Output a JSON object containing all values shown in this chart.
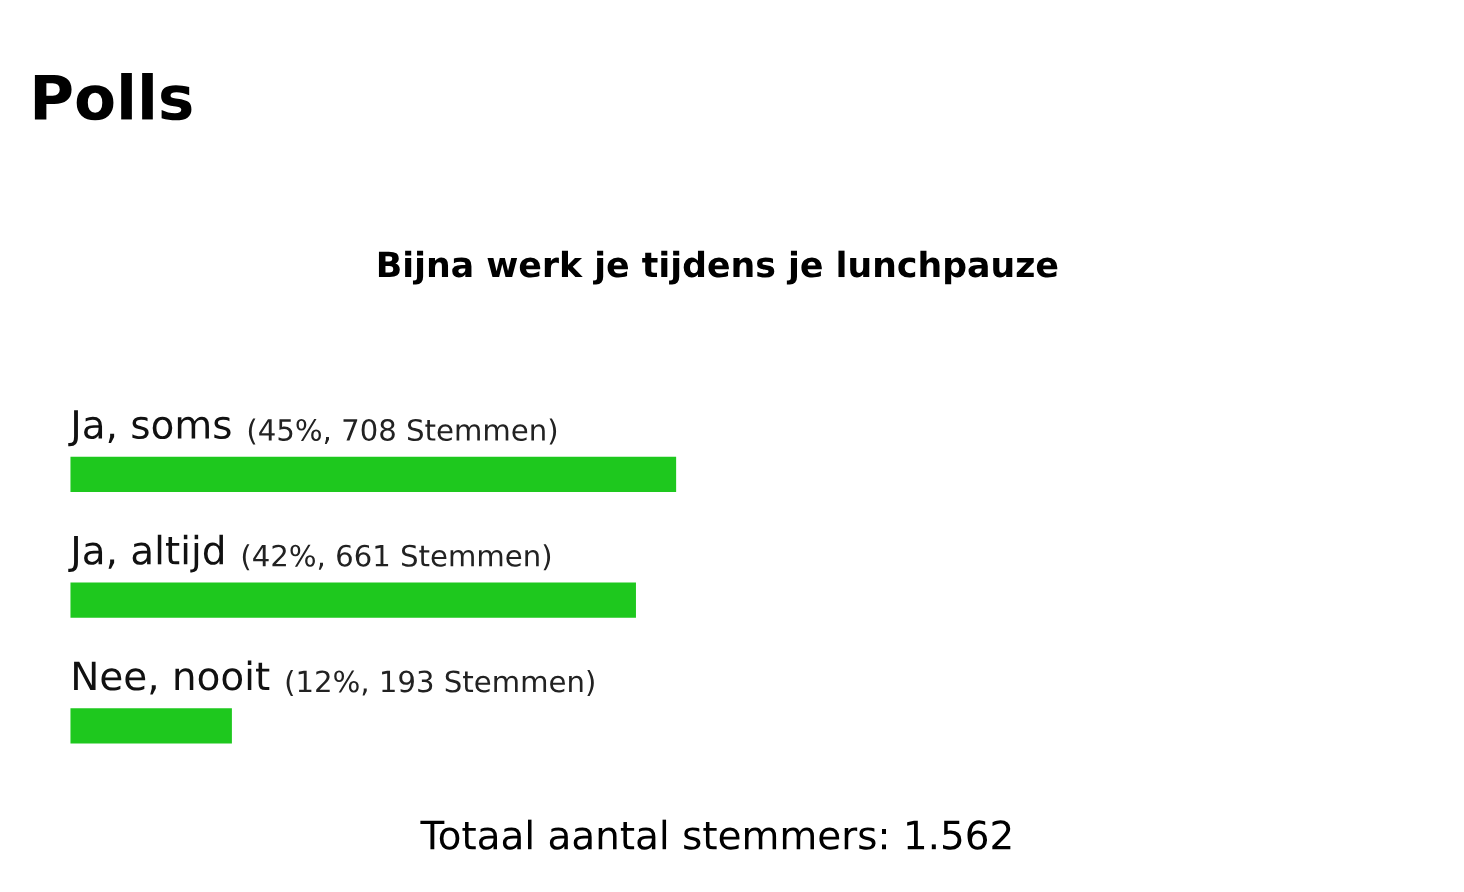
{
  "chart_data": {
    "type": "bar",
    "orientation": "horizontal",
    "title": "Polls",
    "subtitle": "Bijna werk je tijdens je lunchpauze",
    "categories": [
      "Ja, soms",
      "Ja, altijd",
      "Nee, nooit"
    ],
    "values": [
      45,
      42,
      12
    ],
    "value_labels": [
      "(45%, 708 Stemmen)",
      "(42%, 661 Stemmen)",
      "(12%, 193 Stemmen)"
    ],
    "color": "#1ec81e",
    "tick_labels": false,
    "annotations": [
      "Totaal aantal stemmers: 1.562"
    ]
  }
}
